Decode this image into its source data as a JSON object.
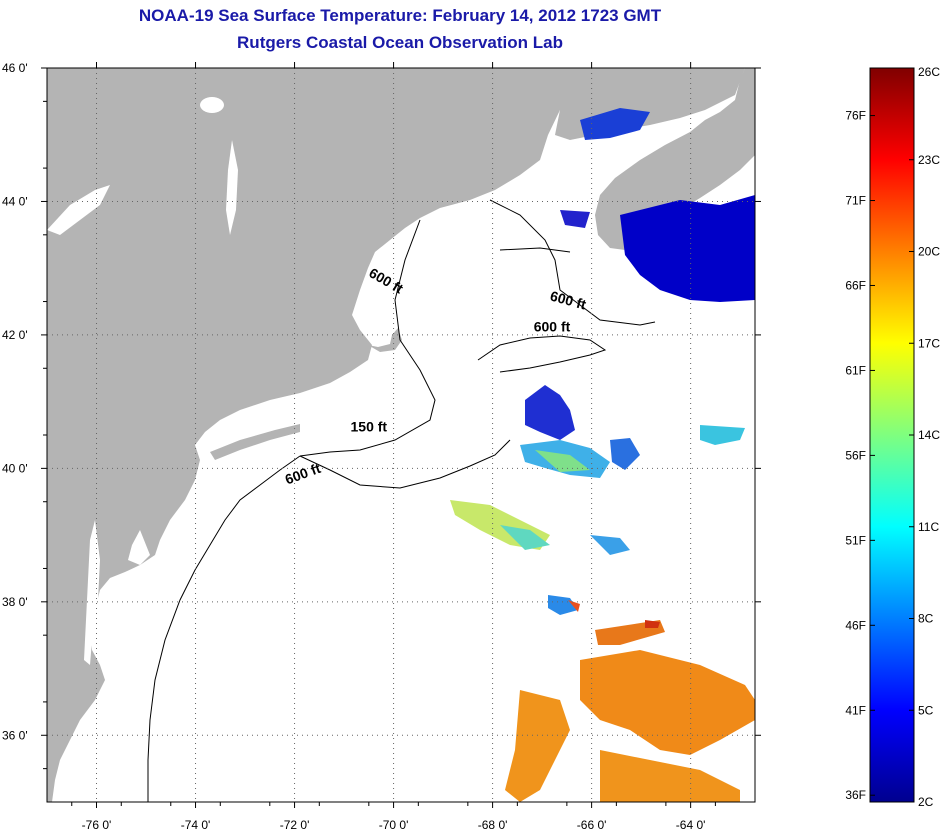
{
  "title": "NOAA-19 Sea Surface Temperature:  February 14, 2012 1723 GMT",
  "subtitle": "Rutgers Coastal Ocean Observation Lab",
  "map": {
    "lon_range": [
      -77.0,
      -62.7
    ],
    "lat_range": [
      35.0,
      46.0
    ],
    "lon_ticks": [
      {
        "value": -76,
        "label": "-76 0'"
      },
      {
        "value": -74,
        "label": "-74 0'"
      },
      {
        "value": -72,
        "label": "-72 0'"
      },
      {
        "value": -70,
        "label": "-70 0'"
      },
      {
        "value": -68,
        "label": "-68 0'"
      },
      {
        "value": -66,
        "label": "-66 0'"
      },
      {
        "value": -64,
        "label": "-64 0'"
      }
    ],
    "lat_ticks": [
      {
        "value": 46,
        "label": "46 0'"
      },
      {
        "value": 44,
        "label": "44 0'"
      },
      {
        "value": 42,
        "label": "42 0'"
      },
      {
        "value": 40,
        "label": "40 0'"
      },
      {
        "value": 38,
        "label": "38 0'"
      },
      {
        "value": 36,
        "label": "36 0'"
      }
    ],
    "gridlines": true,
    "isobath_labels": [
      {
        "text": "600 ft",
        "lon": -70.2,
        "lat": 42.75,
        "angle": 30
      },
      {
        "text": "600 ft",
        "lon": -66.5,
        "lat": 42.45,
        "angle": 15
      },
      {
        "text": "600 ft",
        "lon": -66.8,
        "lat": 42.05,
        "angle": 0
      },
      {
        "text": "150 ft",
        "lon": -70.5,
        "lat": 40.55,
        "angle": 0
      },
      {
        "text": "600 ft",
        "lon": -71.8,
        "lat": 39.85,
        "angle": -20
      }
    ],
    "colors": {
      "land": "#b4b4b4",
      "water": "#ffffff",
      "border": "#000000"
    }
  },
  "colorbar": {
    "min_c": 2,
    "max_c": 26,
    "celsius_labels": [
      "26C",
      "23C",
      "20C",
      "17C",
      "14C",
      "11C",
      "8C",
      "5C",
      "2C"
    ],
    "fahrenheit_labels": [
      "76F",
      "71F",
      "66F",
      "61F",
      "56F",
      "51F",
      "46F",
      "41F",
      "36F"
    ],
    "fahrenheit_values": [
      76,
      71,
      66,
      61,
      56,
      51,
      46,
      41,
      36
    ]
  }
}
